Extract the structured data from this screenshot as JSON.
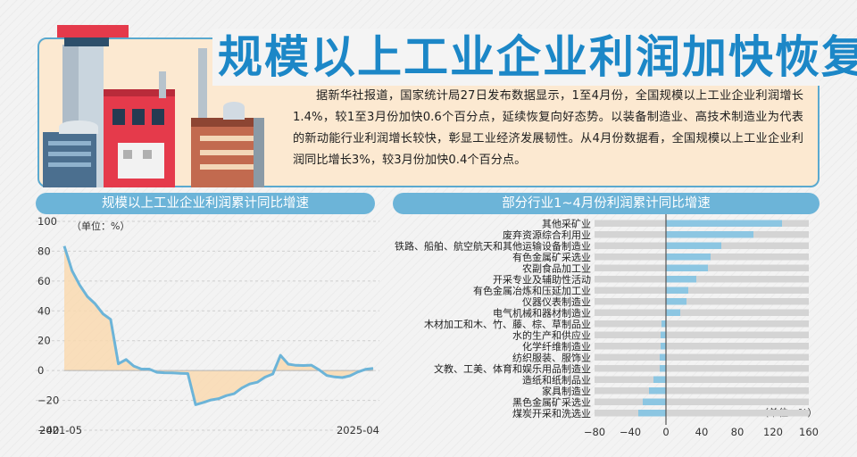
{
  "header": {
    "title": "规模以上工业企业利润加快恢复",
    "intro": "据新华社报道，国家统计局27日发布数据显示，1至4月份，全国规模以上工业企业利润增长1.4%，较1至3月份加快0.6个百分点，延续恢复向好态势。以装备制造业、高技术制造业为代表的新动能行业利润增长较快，彰显工业经济发展韧性。从4月份数据看，全国规模以上工业企业利润同比增长3%，较3月份加快0.4个百分点。"
  },
  "colors": {
    "accent_blue": "#1c87c7",
    "panel_blue": "#6cb4d8",
    "area_fill": "#f9d9b0",
    "line": "#6cb4d8",
    "bar": "#8cc6e2",
    "bar_track": "#d4d4d4"
  },
  "left_panel": {
    "title": "规模以上工业企业利润累计同比增速",
    "unit": "（单位：%）"
  },
  "right_panel": {
    "title": "部分行业1~4月份利润累计同比增速",
    "unit": "（单位：%）"
  },
  "chart_data": [
    {
      "type": "area",
      "title": "规模以上工业企业利润累计同比增速",
      "ylim": [
        -40,
        100
      ],
      "yticks": [
        -40,
        -20,
        0,
        20,
        40,
        60,
        80,
        100
      ],
      "x_start_label": "2021-05",
      "x_end_label": "2025-04",
      "series": [
        {
          "values": [
            83.4,
            66.9,
            57.3,
            49.5,
            44.7,
            38.0,
            34.3,
            4.5,
            7.4,
            3.0,
            1.0,
            1.0,
            -1.2,
            -1.5,
            -1.6,
            -1.8,
            -2.0,
            -22.9,
            -21.4,
            -19.7,
            -18.8,
            -16.8,
            -15.5,
            -11.7,
            -9.0,
            -7.8,
            -4.4,
            -2.3,
            10.2,
            4.3,
            3.5,
            3.4,
            3.6,
            0.5,
            -3.3,
            -4.3,
            -4.7,
            -3.5,
            -1.0,
            0.8,
            1.4
          ]
        }
      ]
    },
    {
      "type": "bar",
      "title": "部分行业1~4月份利润累计同比增速",
      "xlim": [
        -80,
        160
      ],
      "xticks": [
        -80,
        -40,
        0,
        40,
        80,
        120,
        160
      ],
      "categories": [
        "其他采矿业",
        "废弃资源综合利用业",
        "铁路、船舶、航空航天和其他运输设备制造业",
        "有色金属矿采选业",
        "农副食品加工业",
        "开采专业及辅助性活动",
        "有色金属冶炼和压延加工业",
        "仪器仪表制造业",
        "电气机械和器材制造业",
        "木材加工和木、竹、藤、棕、草制品业",
        "水的生产和供应业",
        "化学纤维制造业",
        "纺织服装、服饰业",
        "文教、工美、体育和娱乐用品制造业",
        "造纸和纸制品业",
        "家具制造业",
        "黑色金属矿采选业",
        "煤炭开采和洗选业"
      ],
      "values": [
        130,
        98,
        62,
        50,
        47,
        34,
        25,
        23,
        16,
        -5,
        -6,
        -6,
        -7,
        -7,
        -14,
        -19,
        -26,
        -31
      ]
    }
  ]
}
